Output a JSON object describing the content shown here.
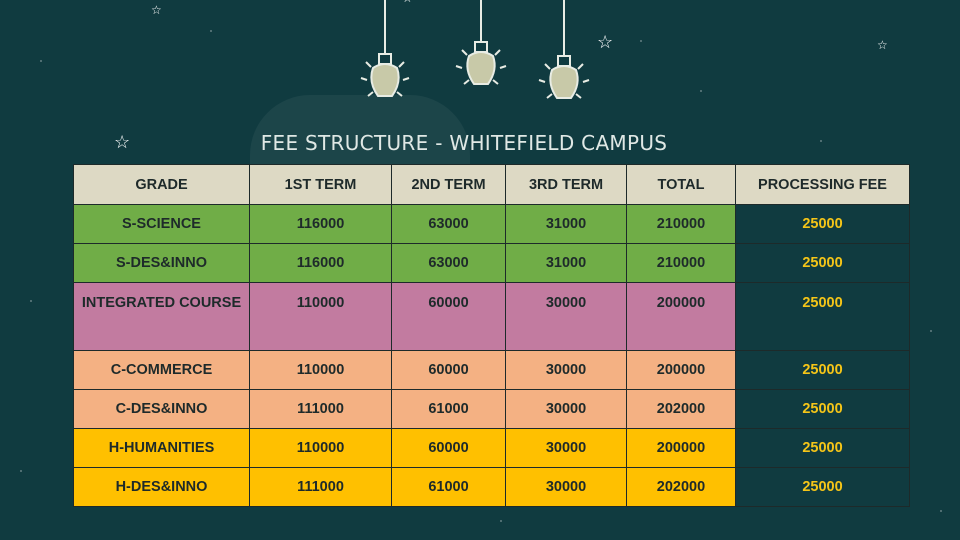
{
  "title": "FEE STRUCTURE - WHITEFIELD CAMPUS",
  "table": {
    "headers": [
      "GRADE",
      "1ST TERM",
      "2ND TERM",
      "3RD TERM",
      "TOTAL",
      "PROCESSING FEE"
    ],
    "rows": [
      {
        "grade": "S-SCIENCE",
        "term1": "116000",
        "term2": "63000",
        "term3": "31000",
        "total": "210000",
        "fee": "25000"
      },
      {
        "grade": "S-DES&INNO",
        "term1": "116000",
        "term2": "63000",
        "term3": "31000",
        "total": "210000",
        "fee": "25000"
      },
      {
        "grade": "INTEGRATED COURSE",
        "term1": "110000",
        "term2": "60000",
        "term3": "30000",
        "total": "200000",
        "fee": "25000"
      },
      {
        "grade": "C-COMMERCE",
        "term1": "110000",
        "term2": "60000",
        "term3": "30000",
        "total": "200000",
        "fee": "25000"
      },
      {
        "grade": "C-DES&INNO",
        "term1": "111000",
        "term2": "61000",
        "term3": "30000",
        "total": "202000",
        "fee": "25000"
      },
      {
        "grade": "H-HUMANITIES",
        "term1": "110000",
        "term2": "60000",
        "term3": "30000",
        "total": "200000",
        "fee": "25000"
      },
      {
        "grade": "H-DES&INNO",
        "term1": "111000",
        "term2": "61000",
        "term3": "30000",
        "total": "202000",
        "fee": "25000"
      }
    ]
  },
  "colors": {
    "background": "#103b40",
    "header": "#ddd9c4",
    "science": "#70ad47",
    "integrated": "#c27ba0",
    "commerce": "#f4b183",
    "humanities": "#ffc000",
    "processing_fee_text": "#f5c518"
  },
  "decorations": [
    "light-bulb-icon",
    "star-icon"
  ]
}
